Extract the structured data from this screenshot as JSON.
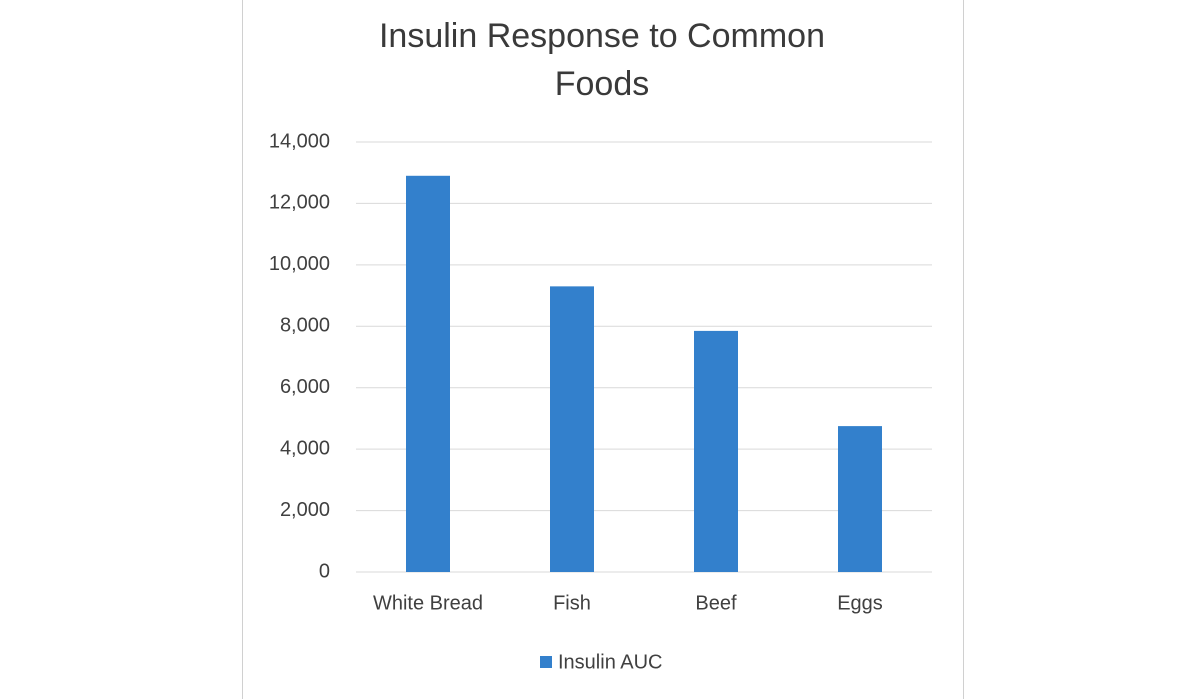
{
  "chart_data": {
    "type": "bar",
    "title": "Insulin Response to Common Foods",
    "categories": [
      "White Bread",
      "Fish",
      "Beef",
      "Eggs"
    ],
    "series": [
      {
        "name": "Insulin AUC",
        "color": "#3380cc",
        "values": [
          12900,
          9300,
          7850,
          4750
        ]
      }
    ],
    "ylim": [
      0,
      14000
    ],
    "yticks": [
      0,
      {
        "value": 2000,
        "label": "2,000"
      },
      {
        "value": 4000,
        "label": "4,000"
      },
      {
        "value": 6000,
        "label": "6,000"
      },
      {
        "value": 8000,
        "label": "8,000"
      },
      {
        "value": 10000,
        "label": "10,000"
      },
      {
        "value": 12000,
        "label": "12,000"
      },
      {
        "value": 14000,
        "label": "14,000"
      }
    ],
    "grid": true,
    "legend": "bottom"
  }
}
